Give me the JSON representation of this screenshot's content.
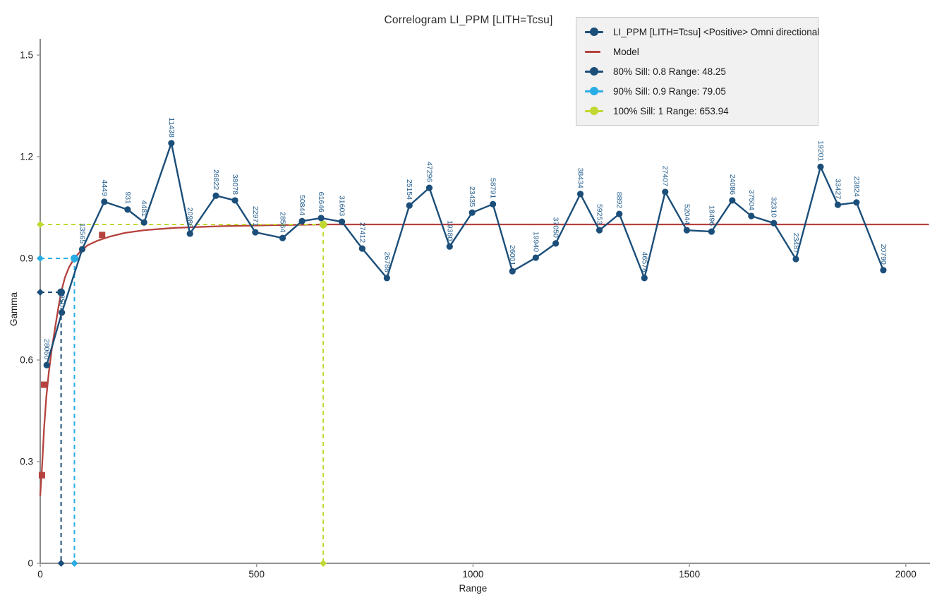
{
  "title": "Correlogram LI_PPM [LITH=Tcsu]",
  "legend": {
    "items": [
      {
        "label": "LI_PPM [LITH=Tcsu] <Positive> Omni directional",
        "type": "line-circle",
        "color": "#1b4e79"
      },
      {
        "label": "Model",
        "type": "line",
        "color": "#b5423e"
      },
      {
        "label": "80% Sill: 0.8 Range: 48.25",
        "type": "line-circle",
        "color": "#1b4e79"
      },
      {
        "label": "90% Sill: 0.9 Range: 79.05",
        "type": "line-circle",
        "color": "#29ade4"
      },
      {
        "label": "100% Sill: 1 Range: 653.94",
        "type": "line-circle",
        "color": "#c1d732"
      }
    ]
  },
  "axes": {
    "x": {
      "label": "Range",
      "ticks": [
        0,
        500,
        1000,
        1500,
        2000
      ],
      "min": 0,
      "max": 2052
    },
    "y": {
      "label": "Gamma",
      "ticks": [
        "0",
        "0.3",
        "0.6",
        "0.9",
        "1.2",
        "1.5"
      ],
      "min": 0,
      "max": 1.5
    }
  },
  "chart_data": {
    "type": "line",
    "series_name": "LI_PPM [LITH=Tcsu] <Positive> Omni directional",
    "xlabel": "Range",
    "ylabel": "Gamma",
    "xlim": [
      0,
      2052
    ],
    "ylim": [
      0,
      1.55
    ],
    "grid": false,
    "legend_position": "top-right",
    "points": [
      {
        "range": 15,
        "gamma": 0.585,
        "label": "28060"
      },
      {
        "range": 50,
        "gamma": 0.74,
        "label": "850"
      },
      {
        "range": 97,
        "gamma": 0.927,
        "label": "13565"
      },
      {
        "range": 148,
        "gamma": 1.067,
        "label": "4449"
      },
      {
        "range": 202,
        "gamma": 1.044,
        "label": "931"
      },
      {
        "range": 240,
        "gamma": 1.006,
        "label": "4481"
      },
      {
        "range": 303,
        "gamma": 1.24,
        "label": "11438"
      },
      {
        "range": 346,
        "gamma": 0.973,
        "label": "20986"
      },
      {
        "range": 406,
        "gamma": 1.085,
        "label": "26822"
      },
      {
        "range": 450,
        "gamma": 1.071,
        "label": "38078"
      },
      {
        "range": 497,
        "gamma": 0.977,
        "label": "22971"
      },
      {
        "range": 560,
        "gamma": 0.96,
        "label": "28564"
      },
      {
        "range": 605,
        "gamma": 1.01,
        "label": "50844"
      },
      {
        "range": 649,
        "gamma": 1.019,
        "label": "61646"
      },
      {
        "range": 697,
        "gamma": 1.008,
        "label": "31603"
      },
      {
        "range": 744,
        "gamma": 0.929,
        "label": "27412"
      },
      {
        "range": 801,
        "gamma": 0.842,
        "label": "26788"
      },
      {
        "range": 853,
        "gamma": 1.056,
        "label": "25154"
      },
      {
        "range": 899,
        "gamma": 1.108,
        "label": "47296"
      },
      {
        "range": 946,
        "gamma": 0.935,
        "label": "19380"
      },
      {
        "range": 998,
        "gamma": 1.035,
        "label": "23435"
      },
      {
        "range": 1046,
        "gamma": 1.06,
        "label": "58791"
      },
      {
        "range": 1091,
        "gamma": 0.862,
        "label": "26001"
      },
      {
        "range": 1145,
        "gamma": 0.902,
        "label": "19940"
      },
      {
        "range": 1191,
        "gamma": 0.944,
        "label": "37050"
      },
      {
        "range": 1248,
        "gamma": 1.09,
        "label": "38434"
      },
      {
        "range": 1292,
        "gamma": 0.983,
        "label": "59253"
      },
      {
        "range": 1338,
        "gamma": 1.031,
        "label": "8892"
      },
      {
        "range": 1396,
        "gamma": 0.842,
        "label": "46578"
      },
      {
        "range": 1444,
        "gamma": 1.096,
        "label": "27407"
      },
      {
        "range": 1494,
        "gamma": 0.983,
        "label": "52044"
      },
      {
        "range": 1551,
        "gamma": 0.979,
        "label": "18496"
      },
      {
        "range": 1599,
        "gamma": 1.071,
        "label": "24086"
      },
      {
        "range": 1643,
        "gamma": 1.025,
        "label": "37504"
      },
      {
        "range": 1695,
        "gamma": 1.004,
        "label": "32310"
      },
      {
        "range": 1746,
        "gamma": 0.898,
        "label": "23487"
      },
      {
        "range": 1803,
        "gamma": 1.17,
        "label": "19201"
      },
      {
        "range": 1843,
        "gamma": 1.058,
        "label": "33427"
      },
      {
        "range": 1886,
        "gamma": 1.065,
        "label": "23824"
      },
      {
        "range": 1948,
        "gamma": 0.865,
        "label": "20790"
      }
    ],
    "model": {
      "name": "Model",
      "points": [
        [
          0,
          0.2
        ],
        [
          4,
          0.28
        ],
        [
          9,
          0.4
        ],
        [
          14,
          0.49
        ],
        [
          20,
          0.565
        ],
        [
          27,
          0.635
        ],
        [
          35,
          0.7
        ],
        [
          42,
          0.755
        ],
        [
          48.25,
          0.8
        ],
        [
          57,
          0.843
        ],
        [
          67,
          0.875
        ],
        [
          79.05,
          0.9
        ],
        [
          93,
          0.921
        ],
        [
          110,
          0.939
        ],
        [
          132,
          0.952
        ],
        [
          160,
          0.964
        ],
        [
          195,
          0.975
        ],
        [
          240,
          0.983
        ],
        [
          310,
          0.99
        ],
        [
          420,
          0.995
        ],
        [
          540,
          0.998
        ],
        [
          653.94,
          1.0
        ],
        [
          2052,
          1.0
        ]
      ],
      "square_markers": [
        {
          "range": 4,
          "gamma": 0.26
        },
        {
          "range": 9,
          "gamma": 0.527
        },
        {
          "range": 143,
          "gamma": 0.969
        }
      ]
    },
    "sills": [
      {
        "pct": "80%",
        "sill": 0.8,
        "range": 48.25,
        "color": "#1b4e79"
      },
      {
        "pct": "90%",
        "sill": 0.9,
        "range": 79.05,
        "color": "#29ade4"
      },
      {
        "pct": "100%",
        "sill": 1.0,
        "range": 653.94,
        "color": "#c1d732"
      }
    ]
  },
  "colors": {
    "series": "#1b4e79",
    "point_label": "#27608f",
    "model": "#b5423e",
    "sill_80": "#1b4e79",
    "sill_90": "#29ade4",
    "sill_100": "#c1d732",
    "axis": "#6e6e6e",
    "tick_text": "#1a1a1a",
    "legend_bg": "#f1f1f1",
    "legend_border": "#c9c9c9"
  }
}
